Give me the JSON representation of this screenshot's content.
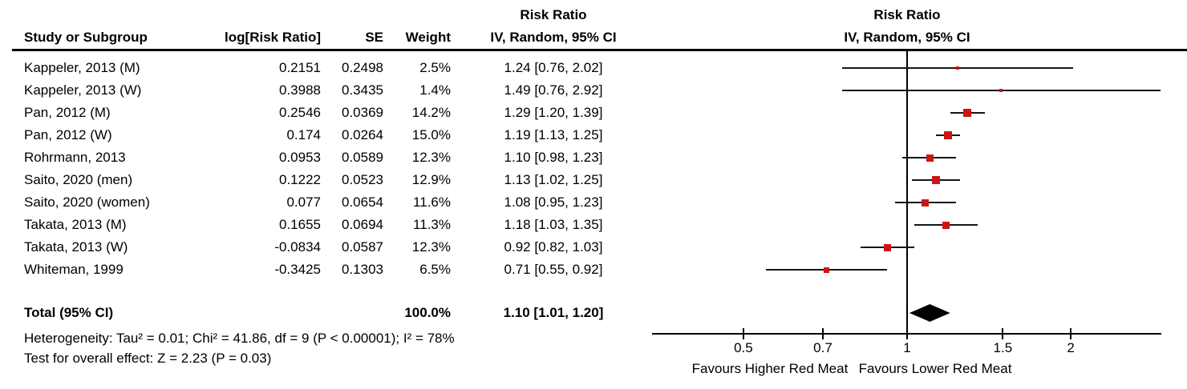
{
  "table": {
    "header": {
      "study": "Study or Subgroup",
      "log_rr": "log[Risk Ratio]",
      "se": "SE",
      "weight": "Weight",
      "ci_line1": "Risk Ratio",
      "ci_line2": "IV, Random, 95% CI"
    },
    "plot_header": {
      "line1": "Risk Ratio",
      "line2": "IV, Random, 95% CI"
    }
  },
  "chart_data": {
    "type": "forest",
    "effect_measure": "Risk Ratio",
    "model": "IV, Random, 95% CI",
    "x_scale": "log10",
    "x_ticks": [
      "0.5",
      "0.7",
      "1",
      "1.5",
      "2"
    ],
    "x_tick_values": [
      0.5,
      0.7,
      1,
      1.5,
      2
    ],
    "axis_range_rr": [
      0.34,
      2.93
    ],
    "null_value": 1,
    "studies": [
      {
        "name": "Kappeler, 2013 (M)",
        "log_rr": "0.2151",
        "se": "0.2498",
        "weight_pct": 2.5,
        "weight_label": "2.5%",
        "rr": 1.24,
        "ci_low": 0.76,
        "ci_high": 2.02,
        "ci_label": "1.24 [0.76, 2.02]"
      },
      {
        "name": "Kappeler, 2013 (W)",
        "log_rr": "0.3988",
        "se": "0.3435",
        "weight_pct": 1.4,
        "weight_label": "1.4%",
        "rr": 1.49,
        "ci_low": 0.76,
        "ci_high": 2.92,
        "ci_label": "1.49 [0.76, 2.92]"
      },
      {
        "name": "Pan, 2012 (M)",
        "log_rr": "0.2546",
        "se": "0.0369",
        "weight_pct": 14.2,
        "weight_label": "14.2%",
        "rr": 1.29,
        "ci_low": 1.2,
        "ci_high": 1.39,
        "ci_label": "1.29 [1.20, 1.39]"
      },
      {
        "name": "Pan, 2012 (W)",
        "log_rr": "0.174",
        "se": "0.0264",
        "weight_pct": 15.0,
        "weight_label": "15.0%",
        "rr": 1.19,
        "ci_low": 1.13,
        "ci_high": 1.25,
        "ci_label": "1.19 [1.13, 1.25]"
      },
      {
        "name": "Rohrmann, 2013",
        "log_rr": "0.0953",
        "se": "0.0589",
        "weight_pct": 12.3,
        "weight_label": "12.3%",
        "rr": 1.1,
        "ci_low": 0.98,
        "ci_high": 1.23,
        "ci_label": "1.10 [0.98, 1.23]"
      },
      {
        "name": "Saito, 2020 (men)",
        "log_rr": "0.1222",
        "se": "0.0523",
        "weight_pct": 12.9,
        "weight_label": "12.9%",
        "rr": 1.13,
        "ci_low": 1.02,
        "ci_high": 1.25,
        "ci_label": "1.13 [1.02, 1.25]"
      },
      {
        "name": "Saito, 2020 (women)",
        "log_rr": "0.077",
        "se": "0.0654",
        "weight_pct": 11.6,
        "weight_label": "11.6%",
        "rr": 1.08,
        "ci_low": 0.95,
        "ci_high": 1.23,
        "ci_label": "1.08 [0.95, 1.23]"
      },
      {
        "name": "Takata, 2013 (M)",
        "log_rr": "0.1655",
        "se": "0.0694",
        "weight_pct": 11.3,
        "weight_label": "11.3%",
        "rr": 1.18,
        "ci_low": 1.03,
        "ci_high": 1.35,
        "ci_label": "1.18 [1.03, 1.35]"
      },
      {
        "name": "Takata, 2013 (W)",
        "log_rr": "-0.0834",
        "se": "0.0587",
        "weight_pct": 12.3,
        "weight_label": "12.3%",
        "rr": 0.92,
        "ci_low": 0.82,
        "ci_high": 1.03,
        "ci_label": "0.92 [0.82, 1.03]"
      },
      {
        "name": "Whiteman, 1999",
        "log_rr": "-0.3425",
        "se": "0.1303",
        "weight_pct": 6.5,
        "weight_label": "6.5%",
        "rr": 0.71,
        "ci_low": 0.55,
        "ci_high": 0.92,
        "ci_label": "0.71 [0.55, 0.92]"
      }
    ],
    "total": {
      "label": "Total (95% CI)",
      "weight_label": "100.0%",
      "rr": 1.1,
      "ci_low": 1.01,
      "ci_high": 1.2,
      "ci_label": "1.10 [1.01, 1.20]"
    },
    "heterogeneity": "Heterogeneity: Tau² = 0.01; Chi² = 41.86, df = 9 (P < 0.00001); I² = 78%",
    "overall_effect": "Test for overall effect: Z = 2.23 (P = 0.03)",
    "favours_left": "Favours Higher Red Meat",
    "favours_right": "Favours Lower Red Meat",
    "marker_color": "#CC1414",
    "line_color": "#151515",
    "axis_color": "#000000"
  }
}
